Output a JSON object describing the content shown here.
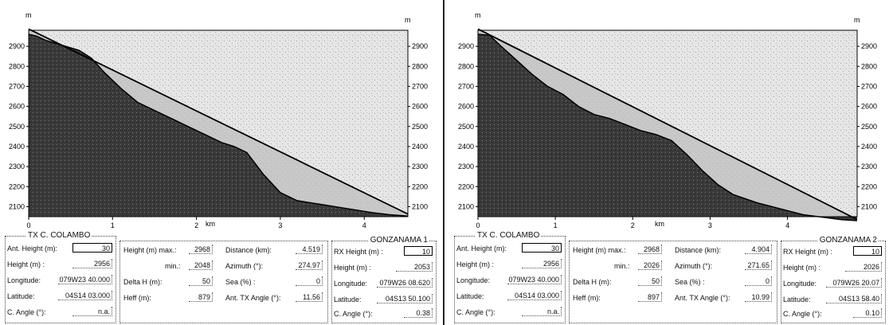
{
  "colors": {
    "terrain_dark": "#3a3a3a",
    "terrain_light": "#bdbdbd",
    "line": "#000000"
  },
  "panels": [
    {
      "chart_data": {
        "type": "area",
        "y_unit_left": "m",
        "y_unit_right": "m",
        "xlabel": "km",
        "x_ticks": [
          "0",
          "1",
          "2",
          "3",
          "4"
        ],
        "y_ticks": [
          "2100",
          "2200",
          "2300",
          "2400",
          "2500",
          "2600",
          "2700",
          "2800",
          "2900"
        ],
        "xlim": [
          0,
          4.52
        ],
        "ylim": [
          2050,
          2980
        ],
        "terrain": [
          [
            0,
            2960
          ],
          [
            0.1,
            2950
          ],
          [
            0.2,
            2930
          ],
          [
            0.4,
            2905
          ],
          [
            0.6,
            2880
          ],
          [
            0.75,
            2840
          ],
          [
            0.9,
            2770
          ],
          [
            1.1,
            2690
          ],
          [
            1.3,
            2620
          ],
          [
            1.5,
            2580
          ],
          [
            1.7,
            2540
          ],
          [
            1.9,
            2500
          ],
          [
            2.1,
            2460
          ],
          [
            2.3,
            2420
          ],
          [
            2.45,
            2400
          ],
          [
            2.6,
            2370
          ],
          [
            2.8,
            2260
          ],
          [
            3.0,
            2170
          ],
          [
            3.2,
            2130
          ],
          [
            3.5,
            2110
          ],
          [
            3.8,
            2090
          ],
          [
            4.1,
            2070
          ],
          [
            4.3,
            2060
          ],
          [
            4.52,
            2053
          ]
        ],
        "los": [
          [
            0,
            2986
          ],
          [
            4.52,
            2063
          ]
        ]
      },
      "tx": {
        "title": "TX C. COLAMBO",
        "ant_height_label": "Ant. Height (m):",
        "ant_height": "30",
        "height_label": "Height (m) :",
        "height": "2956",
        "longitude_label": "Longitude:",
        "longitude": "079W23 40.000",
        "latitude_label": "Latitude:",
        "latitude": "04S14 03.000",
        "c_angle_label": "C. Angle (°):",
        "c_angle": "n.a."
      },
      "mid": {
        "hmax_label": "Height (m)  max.:",
        "hmax": "2968",
        "hmin_label": "min.:",
        "hmin": "2048",
        "delta_label": "Delta H (m):",
        "delta": "50",
        "heff_label": "Heff (m):",
        "heff": "879",
        "distance_label": "Distance (km):",
        "distance": "4.519",
        "azimuth_label": "Azimuth (°):",
        "azimuth": "274.97",
        "sea_label": "Sea (%) :",
        "sea": "0",
        "txangle_label": "Ant. TX Angle (°):",
        "txangle": "11.56"
      },
      "rx": {
        "title": "GONZANAMA 1",
        "rx_height_label": "RX Height (m) :",
        "rx_height": "10",
        "height_label": "Height (m) :",
        "height": "2053",
        "longitude_label": "Longitude:",
        "longitude": "079W26 08.620",
        "latitude_label": "Latitude:",
        "latitude": "04S13 50.100",
        "c_angle_label": "C. Angle (°):",
        "c_angle": "0.38"
      }
    },
    {
      "chart_data": {
        "type": "area",
        "y_unit_left": "m",
        "y_unit_right": "m",
        "xlabel": "km",
        "x_ticks": [
          "0",
          "1",
          "2",
          "3",
          "4"
        ],
        "y_ticks": [
          "2100",
          "2200",
          "2300",
          "2400",
          "2500",
          "2600",
          "2700",
          "2800",
          "2900"
        ],
        "xlim": [
          0,
          4.9
        ],
        "ylim": [
          2050,
          2980
        ],
        "terrain": [
          [
            0,
            2960
          ],
          [
            0.15,
            2955
          ],
          [
            0.3,
            2900
          ],
          [
            0.5,
            2830
          ],
          [
            0.7,
            2760
          ],
          [
            0.9,
            2700
          ],
          [
            1.1,
            2660
          ],
          [
            1.3,
            2600
          ],
          [
            1.5,
            2560
          ],
          [
            1.7,
            2540
          ],
          [
            1.9,
            2510
          ],
          [
            2.1,
            2480
          ],
          [
            2.3,
            2460
          ],
          [
            2.5,
            2430
          ],
          [
            2.7,
            2360
          ],
          [
            2.9,
            2280
          ],
          [
            3.1,
            2210
          ],
          [
            3.3,
            2160
          ],
          [
            3.6,
            2120
          ],
          [
            3.9,
            2090
          ],
          [
            4.2,
            2060
          ],
          [
            4.5,
            2045
          ],
          [
            4.7,
            2035
          ],
          [
            4.9,
            2030
          ]
        ],
        "los": [
          [
            0,
            2986
          ],
          [
            4.9,
            2036
          ]
        ]
      },
      "tx": {
        "title": "TX C. COLAMBO",
        "ant_height_label": "Ant. Height (m):",
        "ant_height": "30",
        "height_label": "Height (m) :",
        "height": "2956",
        "longitude_label": "Longitude:",
        "longitude": "079W23 40.000",
        "latitude_label": "Latitude:",
        "latitude": "04S14 03.000",
        "c_angle_label": "C. Angle (°):",
        "c_angle": "n.a."
      },
      "mid": {
        "hmax_label": "Height (m)  max.:",
        "hmax": "2968",
        "hmin_label": "min.:",
        "hmin": "2026",
        "delta_label": "Delta H (m):",
        "delta": "50",
        "heff_label": "Heff (m):",
        "heff": "897",
        "distance_label": "Distance (km):",
        "distance": "4.904",
        "azimuth_label": "Azimuth (°):",
        "azimuth": "271.65",
        "sea_label": "Sea (%) :",
        "sea": "0",
        "txangle_label": "Ant. TX Angle (°):",
        "txangle": "10.99"
      },
      "rx": {
        "title": "GONZANAMA 2",
        "rx_height_label": "RX Height (m) :",
        "rx_height": "10",
        "height_label": "Height (m) :",
        "height": "2026",
        "longitude_label": "Longitude:",
        "longitude": "079W26 20.07",
        "latitude_label": "Latitude:",
        "latitude": "04S13 58.40",
        "c_angle_label": "C. Angle (°):",
        "c_angle": "0.10"
      }
    }
  ]
}
